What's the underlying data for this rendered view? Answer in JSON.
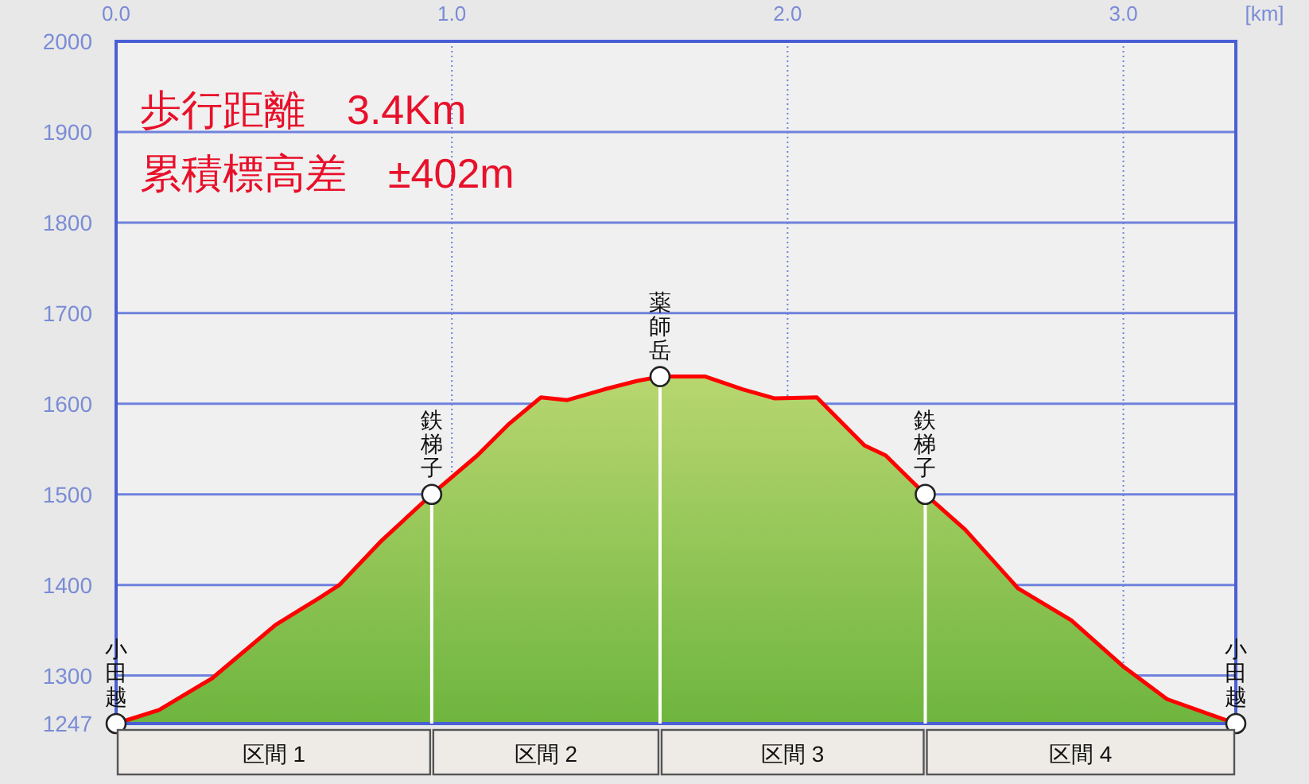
{
  "chart_data": {
    "type": "area",
    "xlabel": "[km]",
    "x": [
      0,
      0.128,
      0.286,
      0.475,
      0.602,
      0.665,
      0.791,
      0.94,
      1.076,
      1.171,
      1.265,
      1.344,
      1.455,
      1.55,
      1.62,
      1.755,
      1.866,
      1.96,
      2.087,
      2.229,
      2.292,
      2.41,
      2.529,
      2.687,
      2.845,
      3.003,
      3.13,
      3.335
    ],
    "series": [
      {
        "color": "#ff0000",
        "values": [
          1247,
          1262,
          1297,
          1356,
          1385,
          1400,
          1449,
          1500,
          1543,
          1578,
          1607,
          1604,
          1616,
          1625,
          1630,
          1630,
          1616,
          1606,
          1607,
          1554,
          1543,
          1500,
          1461,
          1396,
          1361,
          1309,
          1274,
          1247
        ]
      }
    ],
    "xlim": [
      0,
      3.335
    ],
    "ylim": [
      1247,
      2000
    ],
    "xticks": [
      {
        "value": 0,
        "label": "0.0"
      },
      {
        "value": 1,
        "label": "1.0"
      },
      {
        "value": 2,
        "label": "2.0"
      },
      {
        "value": 3,
        "label": "3.0"
      }
    ],
    "yticks": [
      1247,
      1300,
      1400,
      1500,
      1600,
      1700,
      1800,
      1900,
      2000
    ],
    "grid": true,
    "ref_lines": [
      {
        "axis": "x",
        "value": 0.94,
        "color": "#ffffff"
      },
      {
        "axis": "x",
        "value": 1.62,
        "color": "#ffffff"
      },
      {
        "axis": "x",
        "value": 2.41,
        "color": "#ffffff"
      }
    ],
    "annotations": [
      "歩行距離　3.4Km",
      "累積標高差　±402m",
      {
        "text": "小田越",
        "x": 0,
        "y": 1247
      },
      {
        "text": "鉄梯子",
        "x": 0.94,
        "y": 1500
      },
      {
        "text": "薬師岳",
        "x": 1.62,
        "y": 1630
      },
      {
        "text": "鉄梯子",
        "x": 2.41,
        "y": 1500
      },
      {
        "text": "小田越",
        "x": 3.335,
        "y": 1247
      },
      "区間 1",
      "区間 2",
      "区間 3",
      "区間 4"
    ]
  }
}
